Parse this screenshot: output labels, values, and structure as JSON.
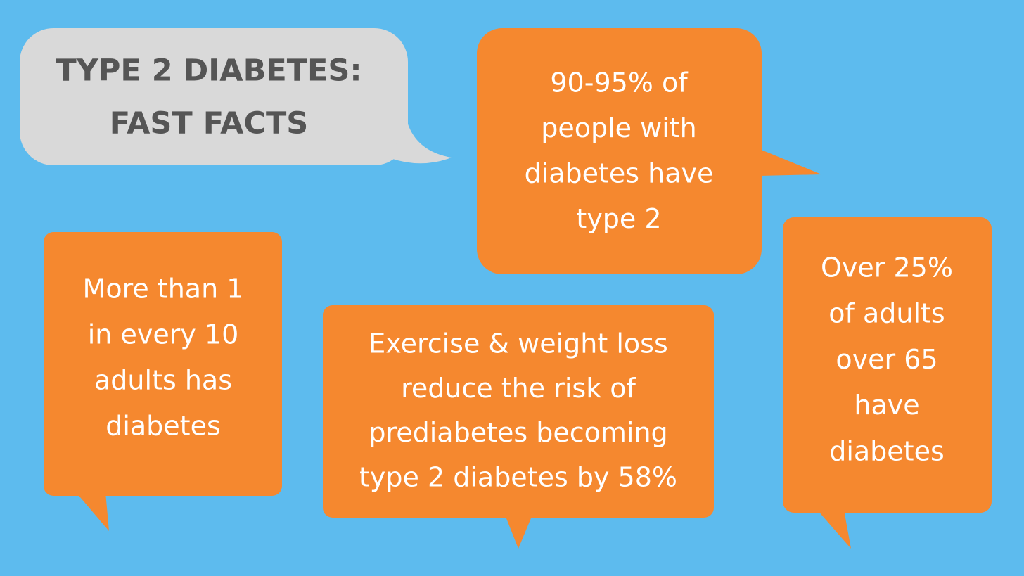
{
  "header": {
    "title_lines": [
      "TYPE 2 DIABETES:",
      "FAST FACTS"
    ]
  },
  "facts": [
    {
      "lines": [
        "90-95% of",
        "people with",
        "diabetes have",
        "type 2"
      ]
    },
    {
      "lines": [
        "More than 1",
        "in every 10",
        "adults has",
        "diabetes"
      ]
    },
    {
      "lines": [
        "Exercise & weight loss",
        "reduce the risk of",
        "prediabetes becoming",
        "type 2 diabetes by 58%"
      ]
    },
    {
      "lines": [
        "Over 25%",
        "of adults",
        "over 65",
        "have",
        "diabetes"
      ]
    }
  ]
}
